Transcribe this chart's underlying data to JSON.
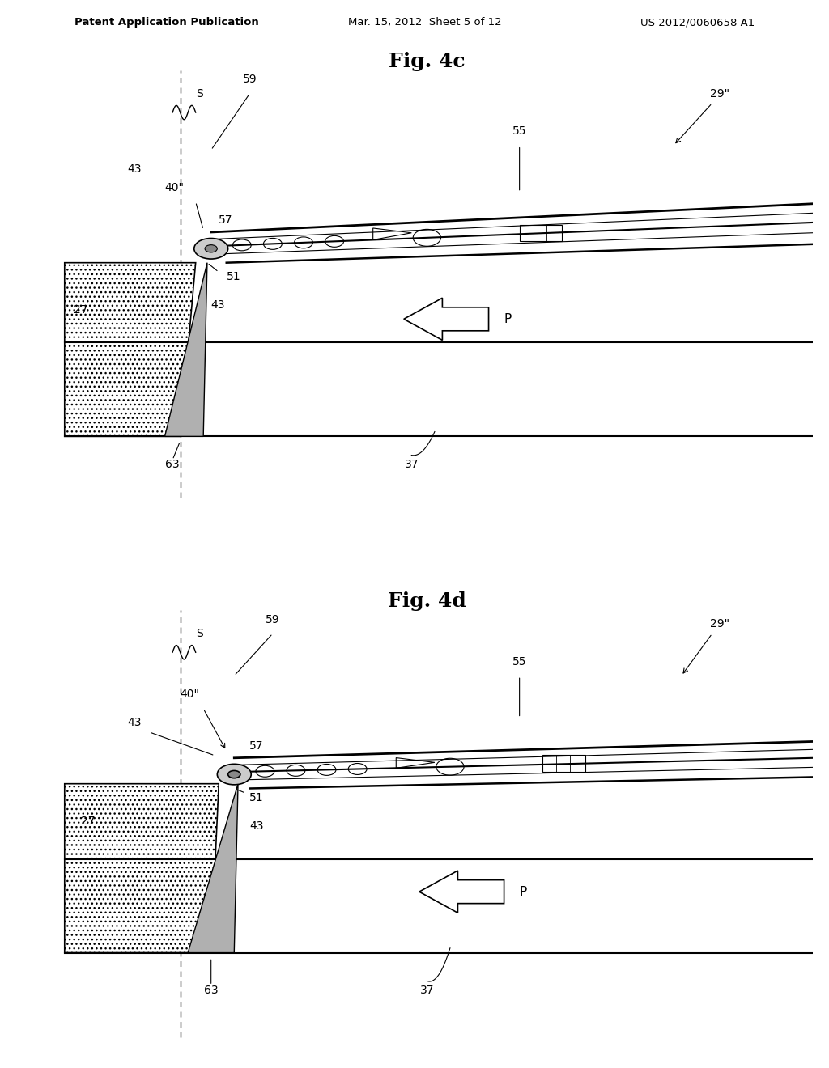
{
  "background_color": "#ffffff",
  "header_left": "Patent Application Publication",
  "header_mid": "Mar. 15, 2012  Sheet 5 of 12",
  "header_right": "US 2012/0060658 A1",
  "fig4c_title": "Fig. 4c",
  "fig4d_title": "Fig. 4d",
  "lc": "#000000",
  "tc": "#000000"
}
